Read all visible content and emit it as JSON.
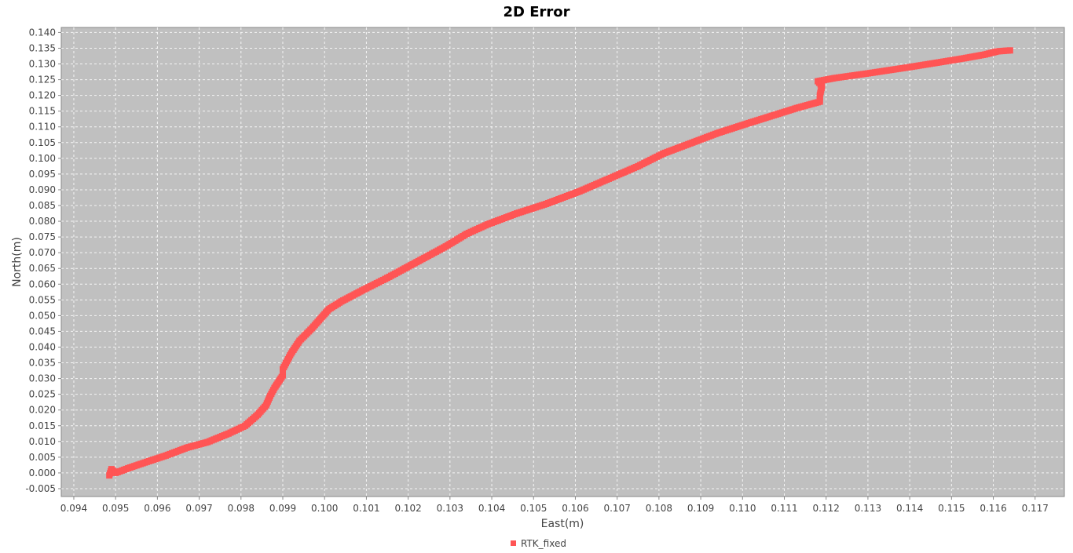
{
  "chart_data": {
    "type": "scatter",
    "title": "2D Error",
    "xlabel": "East(m)",
    "ylabel": "North(m)",
    "xlim": [
      0.0937,
      0.1177
    ],
    "ylim": [
      -0.0075,
      0.1416
    ],
    "x_ticks": [
      "0.094",
      "0.095",
      "0.096",
      "0.097",
      "0.098",
      "0.099",
      "0.100",
      "0.101",
      "0.102",
      "0.103",
      "0.104",
      "0.105",
      "0.106",
      "0.107",
      "0.108",
      "0.109",
      "0.110",
      "0.111",
      "0.112",
      "0.113",
      "0.114",
      "0.115",
      "0.116",
      "0.117"
    ],
    "y_ticks": [
      "-0.005",
      "0.000",
      "0.005",
      "0.010",
      "0.015",
      "0.020",
      "0.025",
      "0.030",
      "0.035",
      "0.040",
      "0.045",
      "0.050",
      "0.055",
      "0.060",
      "0.065",
      "0.070",
      "0.075",
      "0.080",
      "0.085",
      "0.090",
      "0.095",
      "0.100",
      "0.105",
      "0.110",
      "0.115",
      "0.120",
      "0.125",
      "0.130",
      "0.135",
      "0.140"
    ],
    "grid": true,
    "legend_position": "bottom-center",
    "background_color": "#c0c0c0",
    "series": [
      {
        "name": "RTK_fixed",
        "color": "#ff5555",
        "points": [
          [
            0.09485,
            -0.0008
          ],
          [
            0.0949,
            0.0012
          ],
          [
            0.095,
            0.0
          ],
          [
            0.0953,
            0.0015
          ],
          [
            0.0957,
            0.0033
          ],
          [
            0.0962,
            0.0055
          ],
          [
            0.0967,
            0.008
          ],
          [
            0.0972,
            0.0098
          ],
          [
            0.0977,
            0.0125
          ],
          [
            0.0981,
            0.015
          ],
          [
            0.0984,
            0.0185
          ],
          [
            0.0986,
            0.0215
          ],
          [
            0.0987,
            0.0245
          ],
          [
            0.0988,
            0.027
          ],
          [
            0.0989,
            0.029
          ],
          [
            0.099,
            0.031
          ],
          [
            0.099,
            0.033
          ],
          [
            0.0991,
            0.0355
          ],
          [
            0.0992,
            0.038
          ],
          [
            0.0994,
            0.042
          ],
          [
            0.0997,
            0.046
          ],
          [
            0.0999,
            0.049
          ],
          [
            0.1001,
            0.052
          ],
          [
            0.1004,
            0.0545
          ],
          [
            0.1009,
            0.058
          ],
          [
            0.1015,
            0.062
          ],
          [
            0.1022,
            0.067
          ],
          [
            0.1029,
            0.072
          ],
          [
            0.1034,
            0.076
          ],
          [
            0.1039,
            0.079
          ],
          [
            0.1046,
            0.0825
          ],
          [
            0.1053,
            0.0855
          ],
          [
            0.1061,
            0.0895
          ],
          [
            0.1068,
            0.0935
          ],
          [
            0.1075,
            0.0975
          ],
          [
            0.1081,
            0.1015
          ],
          [
            0.1087,
            0.1045
          ],
          [
            0.1094,
            0.108
          ],
          [
            0.1101,
            0.111
          ],
          [
            0.1107,
            0.1135
          ],
          [
            0.1113,
            0.116
          ],
          [
            0.11185,
            0.118
          ],
          [
            0.11185,
            0.12
          ],
          [
            0.1119,
            0.123
          ],
          [
            0.1118,
            0.1245
          ],
          [
            0.1122,
            0.1255
          ],
          [
            0.113,
            0.127
          ],
          [
            0.114,
            0.129
          ],
          [
            0.1147,
            0.1305
          ],
          [
            0.1153,
            0.1318
          ],
          [
            0.1158,
            0.133
          ],
          [
            0.1161,
            0.134
          ],
          [
            0.1164,
            0.1343
          ]
        ]
      }
    ]
  }
}
